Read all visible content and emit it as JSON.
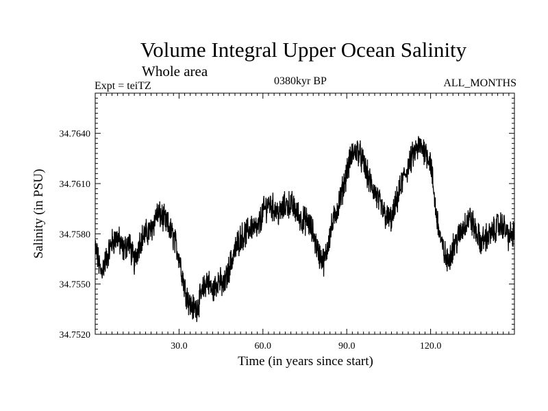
{
  "chart_data": {
    "type": "line",
    "title": "Volume Integral Upper Ocean Salinity",
    "subtitle": "Whole area",
    "experiment_label": "Expt = teiTZ",
    "period_label": "0380kyr BP",
    "months_label": "ALL_MONTHS",
    "xlabel": "Time (in years since start)",
    "ylabel": "Salinity (in PSU)",
    "xlim": [
      0,
      150
    ],
    "ylim": [
      34.752,
      34.7664
    ],
    "xticks": [
      30,
      60,
      90,
      120
    ],
    "xtick_labels": [
      "30.0",
      "60.0",
      "90.0",
      "120.0"
    ],
    "yticks": [
      34.752,
      34.755,
      34.758,
      34.761,
      34.764
    ],
    "ytick_labels": [
      "34.7520",
      "34.7550",
      "34.7580",
      "34.7610",
      "34.7640"
    ],
    "series": [
      {
        "name": "Salinity",
        "color": "#000000",
        "x": [
          0,
          2,
          4,
          6,
          8,
          10,
          12,
          14,
          16,
          18,
          20,
          22,
          24,
          26,
          28,
          30,
          32,
          34,
          36,
          38,
          40,
          42,
          44,
          46,
          48,
          50,
          52,
          54,
          56,
          58,
          60,
          62,
          64,
          66,
          68,
          70,
          72,
          74,
          76,
          78,
          80,
          82,
          84,
          86,
          88,
          90,
          92,
          94,
          96,
          98,
          100,
          102,
          104,
          106,
          108,
          110,
          112,
          114,
          116,
          118,
          120,
          122,
          124,
          126,
          128,
          130,
          132,
          134,
          136,
          138,
          140,
          142,
          144,
          146,
          148,
          150
        ],
        "values": [
          34.7572,
          34.7557,
          34.7565,
          34.7575,
          34.7578,
          34.757,
          34.7575,
          34.7563,
          34.7576,
          34.758,
          34.7582,
          34.7592,
          34.759,
          34.7585,
          34.7578,
          34.7567,
          34.7548,
          34.7537,
          34.7535,
          34.7543,
          34.7553,
          34.7545,
          34.7553,
          34.7548,
          34.756,
          34.757,
          34.7578,
          34.758,
          34.7585,
          34.7582,
          34.7593,
          34.7598,
          34.7595,
          34.7592,
          34.7597,
          34.7598,
          34.7593,
          34.7588,
          34.7588,
          34.758,
          34.7568,
          34.7563,
          34.758,
          34.7592,
          34.7603,
          34.7617,
          34.7628,
          34.763,
          34.7622,
          34.7612,
          34.7605,
          34.7597,
          34.759,
          34.7588,
          34.76,
          34.7612,
          34.762,
          34.7628,
          34.7632,
          34.763,
          34.7623,
          34.7592,
          34.7573,
          34.7563,
          34.7572,
          34.7578,
          34.7585,
          34.759,
          34.7582,
          34.7575,
          34.7578,
          34.758,
          34.7585,
          34.7585,
          34.7578,
          34.758
        ]
      }
    ]
  }
}
